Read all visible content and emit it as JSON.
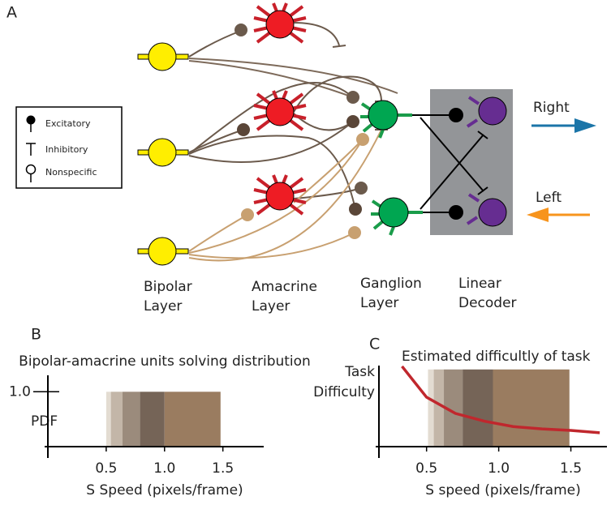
{
  "diagram": {
    "panel_label": "A",
    "legend": [
      "Excitatory",
      "Inhibitory",
      "Nonspecific"
    ],
    "outputs": [
      "Right",
      "Left"
    ],
    "layers": [
      [
        "Bipolar",
        "Layer"
      ],
      [
        "Amacrine",
        "Layer"
      ],
      [
        "Ganglion",
        "Layer"
      ],
      [
        "Linear",
        "Decoder"
      ]
    ]
  },
  "chart_data": [
    {
      "type": "histogram",
      "panel_label": "B",
      "title": "Bipolar-amacrine units solving distribution",
      "ylabel": [
        "PDF"
      ],
      "xlabel": "S Speed (pixels/frame)",
      "bins": [
        0.5,
        0.54,
        0.64,
        0.79,
        1.0,
        1.48
      ],
      "values": [
        1,
        1,
        1,
        1,
        1
      ],
      "colors": [
        "#e3dcd2",
        "#c3b6a8",
        "#9b8b7c",
        "#756457",
        "#9a7c60"
      ],
      "xlim": [
        0,
        1.85
      ],
      "ylim": [
        0,
        1.3
      ],
      "xticks": [
        0.5,
        {
          "value": 1,
          "label": "1.0"
        },
        1.5
      ],
      "yticks": [
        {
          "value": 1,
          "label": "1.0"
        }
      ]
    },
    {
      "type": "line",
      "panel_label": "C",
      "title": "Estimated difficultly of task",
      "ylabel": [
        "Task",
        "Difficulty"
      ],
      "xlabel": "S speed (pixels/frame)",
      "x": [
        0.33,
        0.5,
        0.7,
        0.9,
        1.1,
        1.3,
        1.5,
        1.7
      ],
      "values": [
        1.04,
        0.64,
        0.43,
        0.33,
        0.26,
        0.23,
        0.21,
        0.18
      ],
      "color": "#c0272d",
      "shading": {
        "bins": [
          0.51,
          0.55,
          0.62,
          0.75,
          0.96,
          1.49
        ],
        "values": [
          1,
          1,
          1,
          1,
          1
        ],
        "colors": [
          "#e3dcd2",
          "#c3b6a8",
          "#9b8b7c",
          "#756457",
          "#9a7c60"
        ]
      },
      "xlim": [
        0.17,
        1.75
      ],
      "ylim": [
        0,
        1.05
      ],
      "xticks": [
        0.5,
        {
          "value": 1,
          "label": "1.0"
        },
        1.5
      ],
      "yticks": []
    }
  ]
}
